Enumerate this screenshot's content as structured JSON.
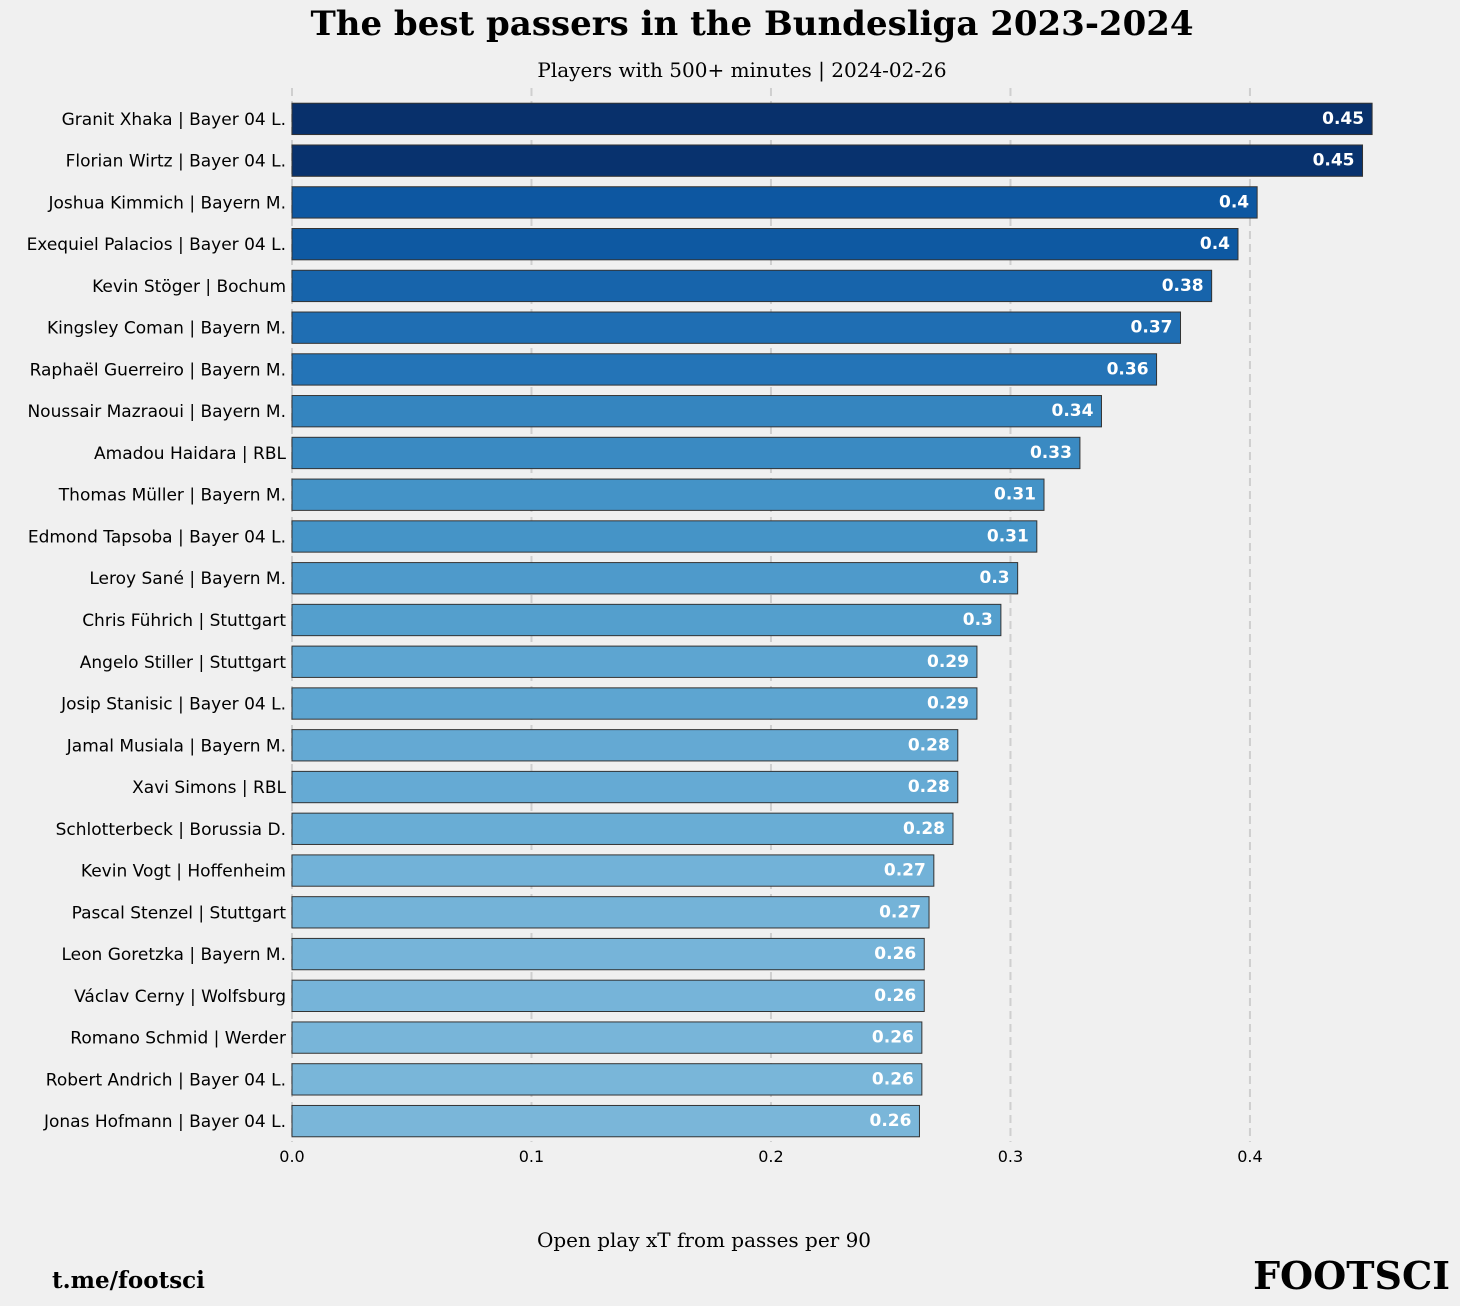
{
  "chart_data": {
    "type": "barh",
    "title": "The best passers in the Bundesliga 2023-2024",
    "subtitle": "Players with 500+ minutes | 2024-02-26",
    "x_label": "Open play xT from passes per 90",
    "footer_left": "t.me/footsci",
    "footer_right": "FOOTSCI",
    "categories": [
      "Granit Xhaka | Bayer 04 L.",
      "Florian Wirtz | Bayer 04 L.",
      "Joshua Kimmich | Bayern M.",
      "Exequiel Palacios | Bayer 04 L.",
      "Kevin Stöger | Bochum",
      "Kingsley Coman | Bayern M.",
      "Raphaël Guerreiro | Bayern M.",
      "Noussair Mazraoui | Bayern M.",
      "Amadou Haidara | RBL",
      "Thomas Müller | Bayern M.",
      "Edmond Tapsoba | Bayer 04 L.",
      "Leroy Sané | Bayern M.",
      "Chris Führich | Stuttgart",
      "Angelo Stiller | Stuttgart",
      "Josip Stanisic | Bayer 04 L.",
      "Jamal Musiala | Bayern M.",
      "Xavi Simons | RBL",
      "Schlotterbeck | Borussia D.",
      "Kevin Vogt | Hoffenheim",
      "Pascal Stenzel | Stuttgart",
      "Leon Goretzka | Bayern M.",
      "Václav Cerny | Wolfsburg",
      "Romano Schmid | Werder",
      "Robert Andrich | Bayer 04 L.",
      "Jonas Hofmann | Bayer 04 L."
    ],
    "values": [
      0.451,
      0.447,
      0.403,
      0.395,
      0.384,
      0.371,
      0.361,
      0.338,
      0.329,
      0.314,
      0.311,
      0.303,
      0.296,
      0.286,
      0.286,
      0.278,
      0.278,
      0.276,
      0.268,
      0.266,
      0.264,
      0.264,
      0.263,
      0.263,
      0.262
    ],
    "value_labels": [
      "0.45",
      "0.45",
      "0.4",
      "0.4",
      "0.38",
      "0.37",
      "0.36",
      "0.34",
      "0.33",
      "0.31",
      "0.31",
      "0.3",
      "0.3",
      "0.29",
      "0.29",
      "0.28",
      "0.28",
      "0.28",
      "0.27",
      "0.27",
      "0.26",
      "0.26",
      "0.26",
      "0.26",
      "0.26"
    ],
    "colors": [
      "#08306b",
      "#08326e",
      "#0d57a1",
      "#0e59a2",
      "#1764ab",
      "#1f6eb3",
      "#2474b7",
      "#3585bf",
      "#3a8ac2",
      "#4493c7",
      "#4594c7",
      "#4e9acb",
      "#549fcd",
      "#5da5d1",
      "#5da5d1",
      "#64a9d3",
      "#65aad4",
      "#69add5",
      "#72b2d8",
      "#74b3d8",
      "#76b4d9",
      "#76b4d9",
      "#78b5d9",
      "#79b6d9",
      "#7ab6d9"
    ],
    "xlim": [
      0,
      0.471
    ],
    "xticks": [
      {
        "value": 0,
        "label": "0.0"
      },
      0.1,
      0.2,
      0.3,
      0.4
    ],
    "grid": true
  }
}
